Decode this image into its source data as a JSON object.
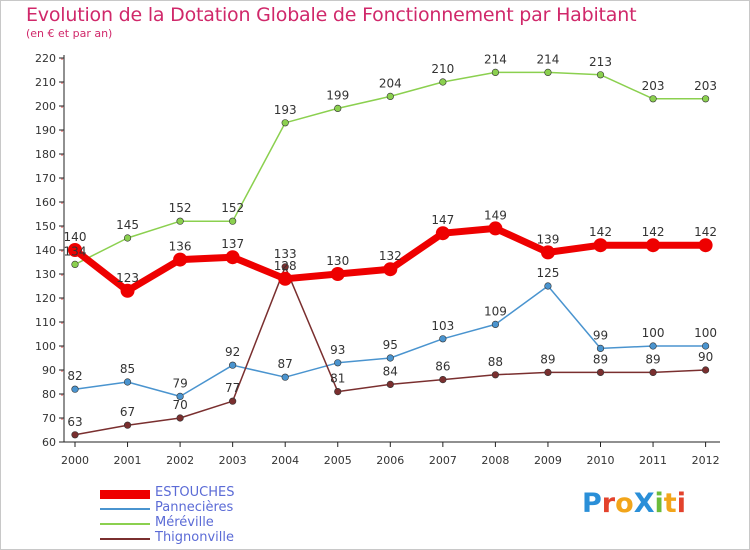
{
  "title": "Evolution de la Dotation Globale de Fonctionnement par Habitant",
  "subtitle": "(en € et par an)",
  "logo_text": "ProXiti",
  "chart_data": {
    "type": "line",
    "title": "Evolution de la Dotation Globale de Fonctionnement par Habitant",
    "subtitle": "(en € et par an)",
    "xlabel": "",
    "ylabel": "",
    "ylim": [
      60,
      220
    ],
    "yticks": [
      60,
      70,
      80,
      90,
      100,
      110,
      120,
      130,
      140,
      150,
      160,
      170,
      180,
      190,
      200,
      210,
      220
    ],
    "categories": [
      "2000",
      "2001",
      "2002",
      "2003",
      "2004",
      "2005",
      "2006",
      "2007",
      "2008",
      "2009",
      "2010",
      "2011",
      "2012"
    ],
    "legend_position": "bottom-left",
    "grid": false,
    "series": [
      {
        "name": "Méréville",
        "color": "#8bd04f",
        "values": [
          134,
          145,
          152,
          152,
          193,
          199,
          204,
          210,
          214,
          214,
          213,
          203,
          203
        ]
      },
      {
        "name": "Pannecières",
        "color": "#4a94cf",
        "values": [
          82,
          85,
          79,
          92,
          87,
          93,
          95,
          103,
          109,
          125,
          99,
          100,
          100
        ]
      },
      {
        "name": "Thignonville",
        "color": "#7a2f2f",
        "values": [
          63,
          67,
          70,
          77,
          133,
          81,
          84,
          86,
          88,
          89,
          89,
          89,
          90
        ]
      },
      {
        "name": "ESTOUCHES",
        "color": "#ee0000",
        "values": [
          140,
          123,
          136,
          137,
          128,
          130,
          132,
          147,
          149,
          139,
          142,
          142,
          142
        ]
      }
    ]
  },
  "legend": [
    {
      "name": "ESTOUCHES",
      "color": "#ee0000"
    },
    {
      "name": "Pannecières",
      "color": "#4a94cf"
    },
    {
      "name": "Méréville",
      "color": "#8bd04f"
    },
    {
      "name": "Thignonville",
      "color": "#7a2f2f"
    }
  ]
}
